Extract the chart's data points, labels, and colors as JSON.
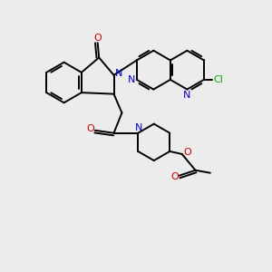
{
  "bg_color": "#ececec",
  "bond_color": "#000000",
  "N_color": "#0000cc",
  "O_color": "#cc0000",
  "Cl_color": "#00aa00",
  "lw": 1.4,
  "xlim": [
    0,
    10
  ],
  "ylim": [
    0,
    10
  ]
}
